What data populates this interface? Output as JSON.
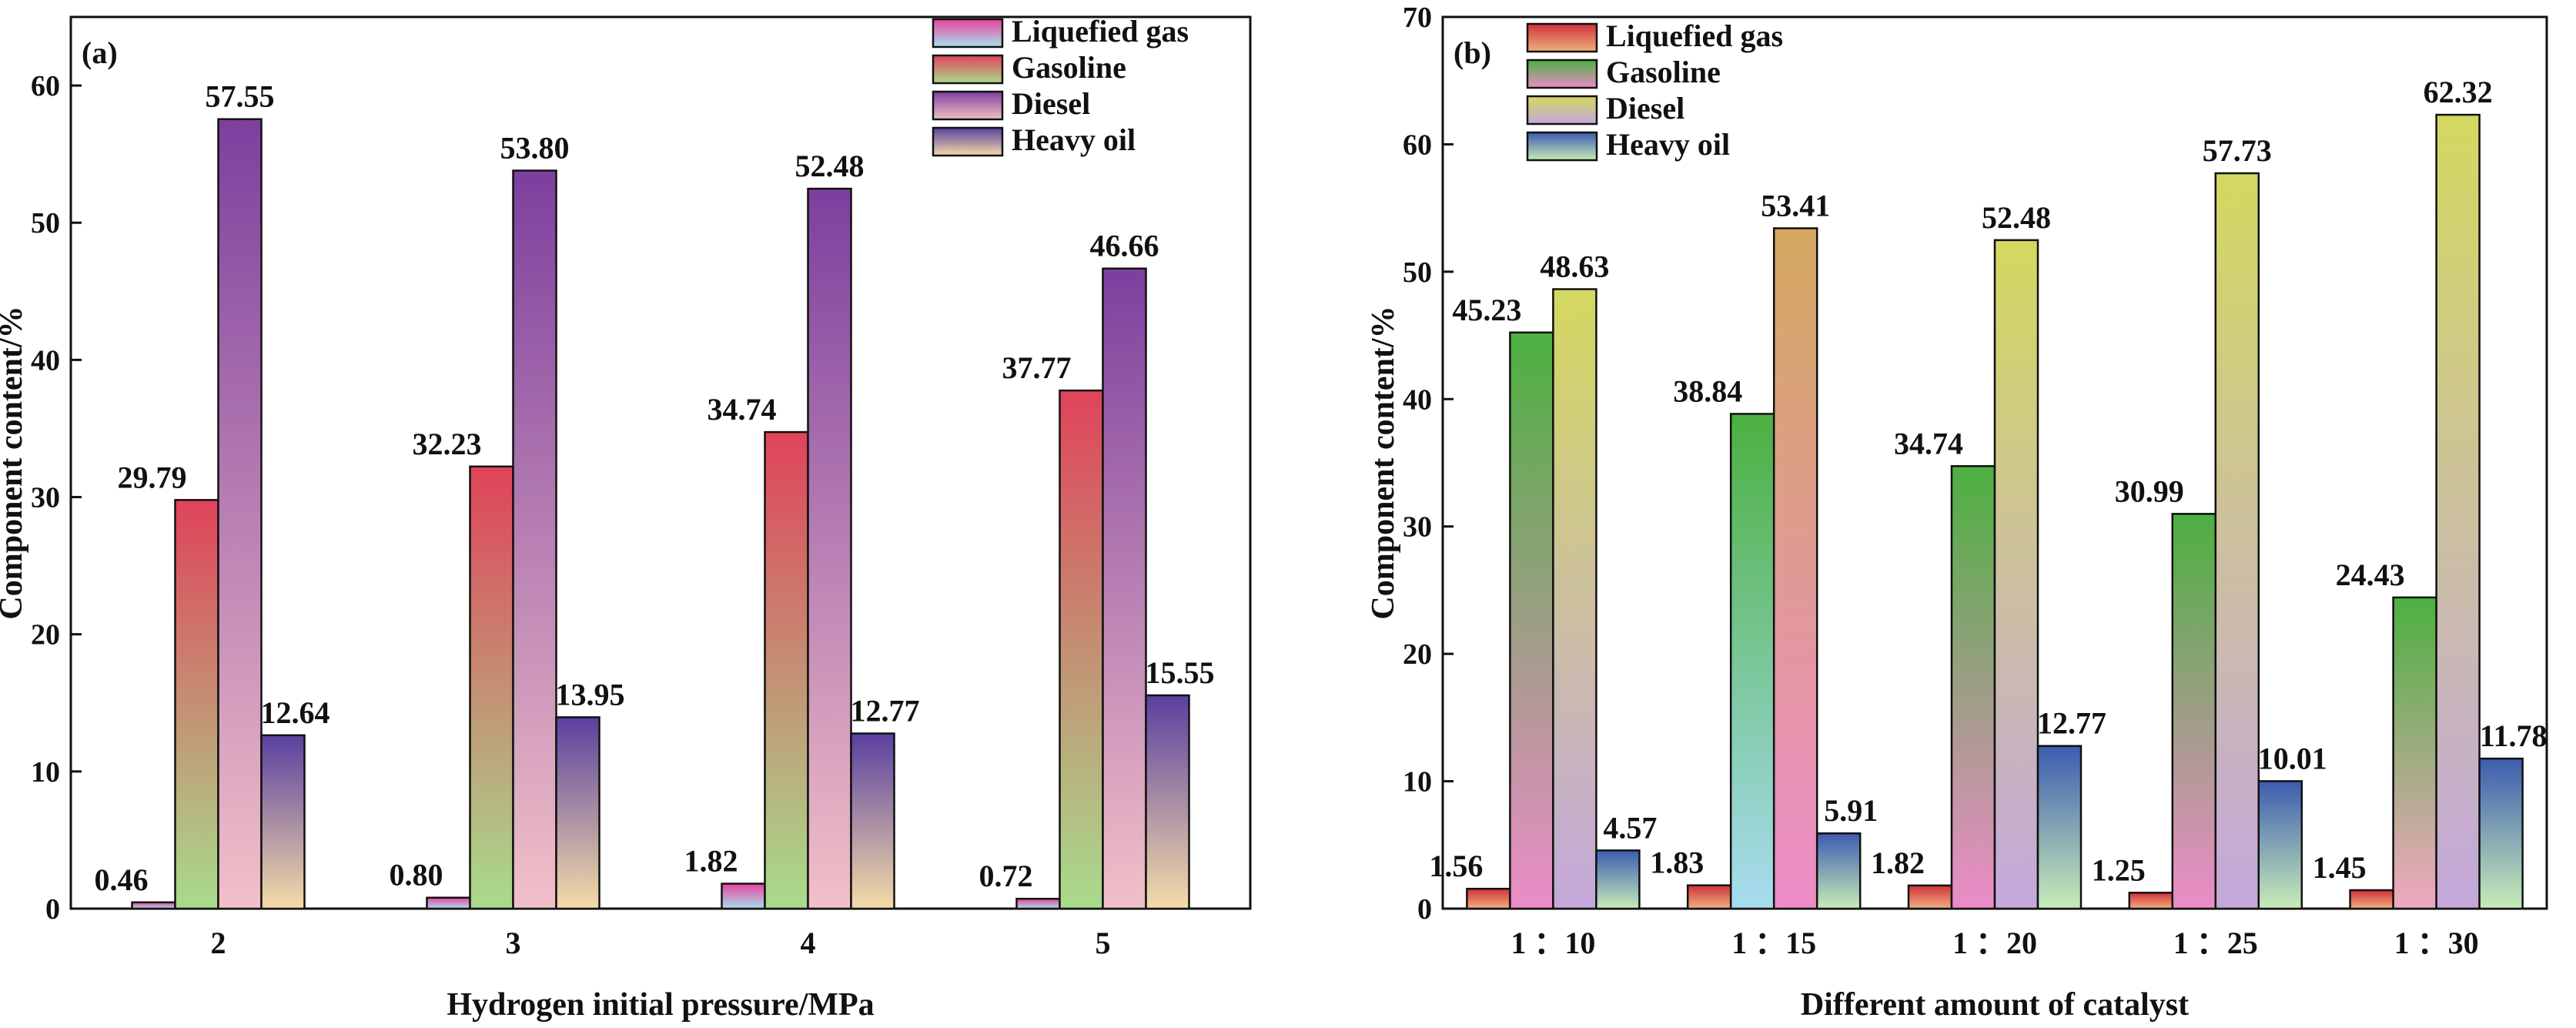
{
  "chart_data": [
    {
      "type": "bar",
      "panel_label": "(a)",
      "categories": [
        "2",
        "3",
        "4",
        "5"
      ],
      "xlabel": "Hydrogen initial pressure/MPa",
      "ylabel": "Component content/%",
      "ylim": [
        0,
        65
      ],
      "yticks": [
        0,
        10,
        20,
        30,
        40,
        50,
        60
      ],
      "legend_position": "top-right",
      "series": [
        {
          "name": "Liquefied gas",
          "values": [
            0.46,
            0.8,
            1.82,
            0.72
          ],
          "labels": [
            "0.46",
            "0.80",
            "1.82",
            "0.72"
          ],
          "colors": [
            "#e8449a",
            "#a8e0f0"
          ]
        },
        {
          "name": "Gasoline",
          "values": [
            29.79,
            32.23,
            34.74,
            37.77
          ],
          "labels": [
            "29.79",
            "32.23",
            "34.74",
            "37.77"
          ],
          "colors": [
            "#e0435a",
            "#a8dc8c"
          ]
        },
        {
          "name": "Diesel",
          "values": [
            57.55,
            53.8,
            52.48,
            46.66
          ],
          "labels": [
            "57.55",
            "53.80",
            "52.48",
            "46.66"
          ],
          "colors": [
            "#7d3f9e",
            "#f2c0c8"
          ]
        },
        {
          "name": "Heavy oil",
          "values": [
            12.64,
            13.95,
            12.77,
            15.55
          ],
          "labels": [
            "12.64",
            "13.95",
            "12.77",
            "15.55"
          ],
          "colors": [
            "#5a3fa0",
            "#f5dca8"
          ]
        }
      ]
    },
    {
      "type": "bar",
      "panel_label": "(b)",
      "categories": [
        "1 ：10",
        "1 ：15",
        "1 ：20",
        "1 ：25",
        "1 ：30"
      ],
      "xlabel": "Different amount of catalyst",
      "ylabel": "Component content/%",
      "ylim": [
        0,
        70
      ],
      "yticks": [
        0,
        10,
        20,
        30,
        40,
        50,
        60,
        70
      ],
      "legend_position": "top-left",
      "series": [
        {
          "name": "Liquefied gas",
          "values": [
            1.56,
            1.83,
            1.82,
            1.25,
            1.45
          ],
          "labels": [
            "1.56",
            "1.83",
            "1.82",
            "1.25",
            "1.45"
          ],
          "colors": [
            "#d0323a",
            "#f0b080"
          ]
        },
        {
          "name": "Gasoline",
          "values": [
            45.23,
            38.84,
            34.74,
            30.99,
            24.43
          ],
          "labels": [
            "45.23",
            "38.84",
            "34.74",
            "30.99",
            "24.43"
          ],
          "colors": [
            "#4cb040",
            "#ec8cc8"
          ]
        },
        {
          "name": "Diesel",
          "values": [
            48.63,
            53.41,
            52.48,
            57.73,
            62.32
          ],
          "labels": [
            "48.63",
            "53.41",
            "52.48",
            "57.73",
            "62.32"
          ],
          "colors": [
            "#d4d860",
            "#c4a8dc"
          ]
        },
        {
          "name": "Heavy oil",
          "values": [
            4.57,
            5.91,
            12.77,
            10.01,
            11.78
          ],
          "labels": [
            "4.57",
            "5.91",
            "12.77",
            "10.01",
            "11.78"
          ],
          "colors": [
            "#3c5cb0",
            "#c8ecb8"
          ]
        }
      ],
      "bar_overrides": [
        {
          "category_index": 1,
          "series_index": 1,
          "colors": [
            "#4cb040",
            "#a8dcf0"
          ]
        },
        {
          "category_index": 1,
          "series_index": 2,
          "colors": [
            "#d4a860",
            "#ec8cc8"
          ]
        },
        {
          "category_index": 4,
          "series_index": 1,
          "colors": [
            "#4cb040",
            "#f0a8c0"
          ]
        }
      ]
    }
  ]
}
